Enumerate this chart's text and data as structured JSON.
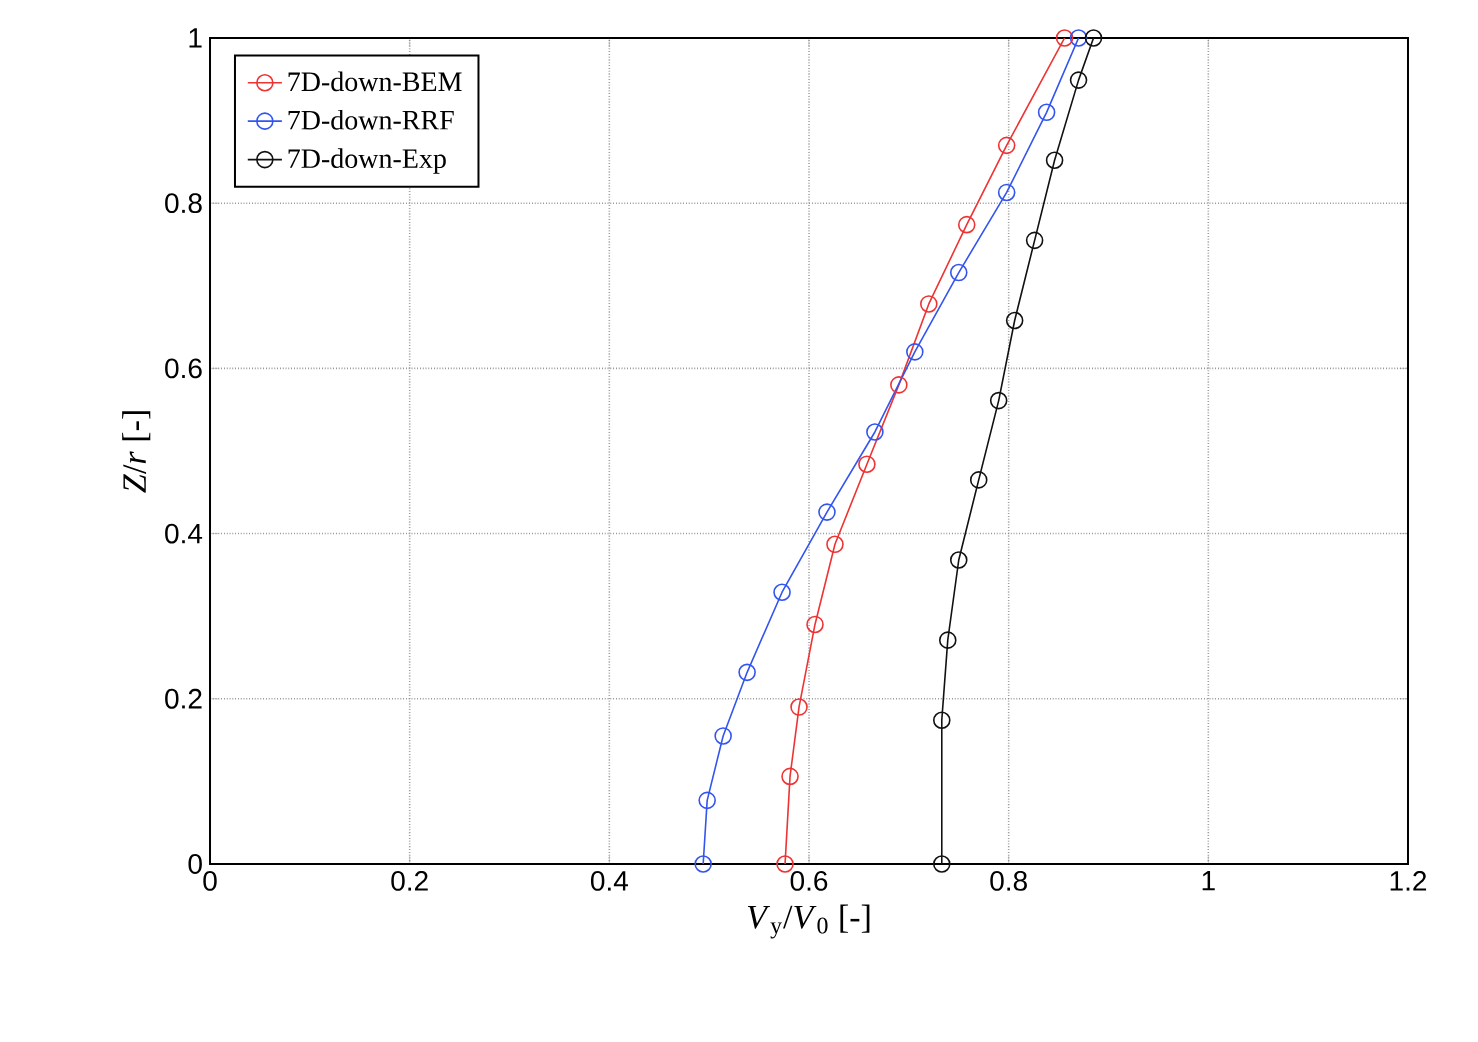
{
  "chart_data": {
    "type": "line",
    "xlabel": "*V*$_{y}$/*V*$_{0}$ [-]",
    "ylabel": "*Z*/*r* [-]",
    "xlim": [
      0,
      1.2
    ],
    "ylim": [
      0,
      1
    ],
    "xticks": [
      0,
      0.2,
      0.4,
      0.6,
      0.8,
      1,
      1.2
    ],
    "yticks": [
      0,
      0.2,
      0.4,
      0.6,
      0.8,
      1
    ],
    "grid": true,
    "legend": "top left",
    "marker": "circle",
    "line_style": "solid",
    "series": [
      {
        "name": "7D-down-BEM",
        "color": "#ee3333",
        "x": [
          0.576,
          0.581,
          0.59,
          0.606,
          0.626,
          0.658,
          0.69,
          0.72,
          0.758,
          0.798,
          0.856
        ],
        "values": [
          0,
          0.106,
          0.19,
          0.29,
          0.387,
          0.484,
          0.58,
          0.678,
          0.774,
          0.87,
          1
        ]
      },
      {
        "name": "7D-down-RRF",
        "color": "#3355ee",
        "x": [
          0.494,
          0.498,
          0.514,
          0.538,
          0.573,
          0.618,
          0.666,
          0.706,
          0.75,
          0.798,
          0.838,
          0.87
        ],
        "values": [
          0,
          0.077,
          0.155,
          0.232,
          0.329,
          0.426,
          0.523,
          0.62,
          0.716,
          0.813,
          0.91,
          1
        ]
      },
      {
        "name": "7D-down-Exp",
        "color": "#111111",
        "x": [
          0.733,
          0.733,
          0.739,
          0.75,
          0.77,
          0.79,
          0.806,
          0.826,
          0.846,
          0.87,
          0.885
        ],
        "values": [
          0,
          0.174,
          0.271,
          0.368,
          0.465,
          0.561,
          0.658,
          0.755,
          0.852,
          0.949,
          1
        ]
      }
    ]
  }
}
